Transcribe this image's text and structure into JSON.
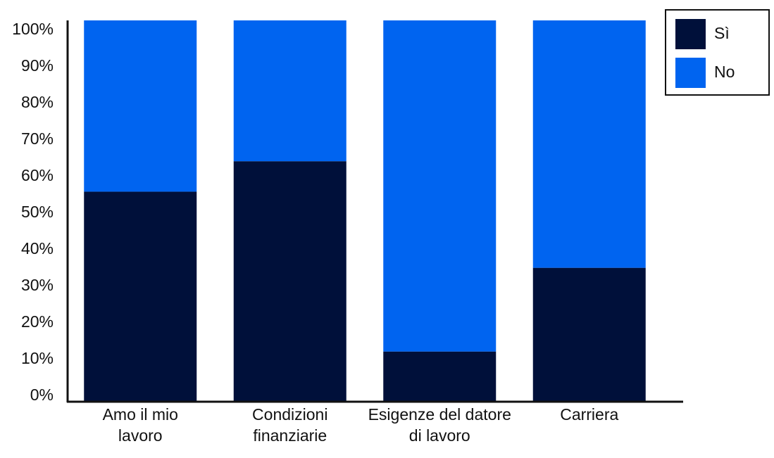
{
  "chart_data": {
    "type": "stacked_bar",
    "categories": [
      "Amo il mio lavoro",
      "Condizioni finanziarie",
      "Esigenze del datore di lavoro",
      "Carriera"
    ],
    "series": [
      {
        "name": "Sì",
        "color": "#00103a",
        "values": [
          55,
          63,
          13,
          35
        ]
      },
      {
        "name": "No",
        "color": "#0064f0",
        "values": [
          45,
          37,
          87,
          65
        ]
      }
    ],
    "ylim": [
      0,
      100
    ],
    "yticks": [
      {
        "value": 0,
        "label": "0%"
      },
      {
        "value": 10,
        "label": "10%"
      },
      {
        "value": 20,
        "label": "20%"
      },
      {
        "value": 30,
        "label": "30%"
      },
      {
        "value": 40,
        "label": "40%"
      },
      {
        "value": 50,
        "label": "50%"
      },
      {
        "value": 60,
        "label": "60%"
      },
      {
        "value": 70,
        "label": "70%"
      },
      {
        "value": 80,
        "label": "80%"
      },
      {
        "value": 90,
        "label": "90%"
      },
      {
        "value": 100,
        "label": "100%"
      }
    ],
    "grid": false,
    "legend": "top-right"
  }
}
